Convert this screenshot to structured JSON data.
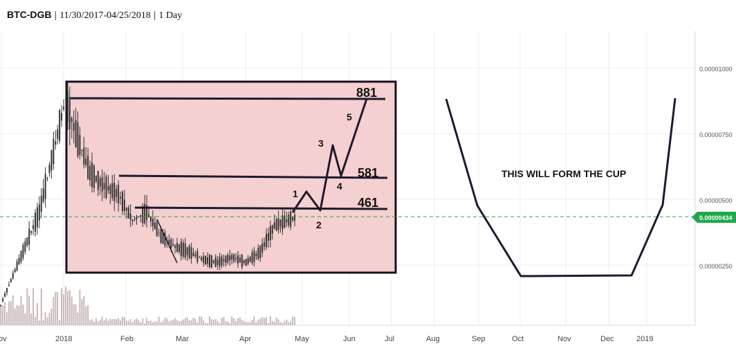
{
  "header": {
    "symbol": "BTC-DGB",
    "date_range": "11/30/2017-04/25/2018",
    "interval": "1 Day"
  },
  "colors": {
    "candle": "#333333",
    "volume": "#c9b8b8",
    "box_fill": "#f4d0d0",
    "box_stroke": "#1a1020",
    "drawing": "#1d1a2e",
    "price_line": "#26a65b",
    "price_tag": "#1fa84a",
    "grid": "#ececec"
  },
  "chart_data": {
    "type": "line",
    "title": "",
    "xlabel": "",
    "ylabel": "",
    "x_ticks": [
      "ov",
      "2018",
      "Feb",
      "Mar",
      "Apr",
      "May",
      "Jun",
      "Jul",
      "Aug",
      "Sep",
      "Oct",
      "Nov",
      "Dec",
      "2019"
    ],
    "y_ticks": [
      "0.00001000",
      "0.00000750",
      "0.00000500",
      "0.00000250"
    ],
    "current_price": "0.00000434",
    "levels": [
      {
        "label": "881",
        "value": 8.81e-06
      },
      {
        "label": "581",
        "value": 5.81e-06
      },
      {
        "label": "461",
        "value": 4.61e-06
      }
    ],
    "wave_labels": [
      "1",
      "2",
      "3",
      "4",
      "5"
    ],
    "cup_label": "THIS WILL FORM THE CUP",
    "price_series": {
      "x": [
        "2017-11-30",
        "2017-12-20",
        "2018-01-02",
        "2018-01-07",
        "2018-01-14",
        "2018-01-21",
        "2018-01-28",
        "2018-02-04",
        "2018-02-11",
        "2018-02-18",
        "2018-02-25",
        "2018-03-04",
        "2018-03-11",
        "2018-03-18",
        "2018-03-25",
        "2018-04-01",
        "2018-04-08",
        "2018-04-15",
        "2018-04-25"
      ],
      "y": [
        8e-07,
        4.5e-06,
        8.8e-06,
        7.5e-06,
        6e-06,
        5.5e-06,
        5.2e-06,
        4.2e-06,
        4.5e-06,
        3.6e-06,
        3.2e-06,
        3e-06,
        2.7e-06,
        2.6e-06,
        2.8e-06,
        2.6e-06,
        3e-06,
        4e-06,
        4.3e-06
      ]
    }
  }
}
